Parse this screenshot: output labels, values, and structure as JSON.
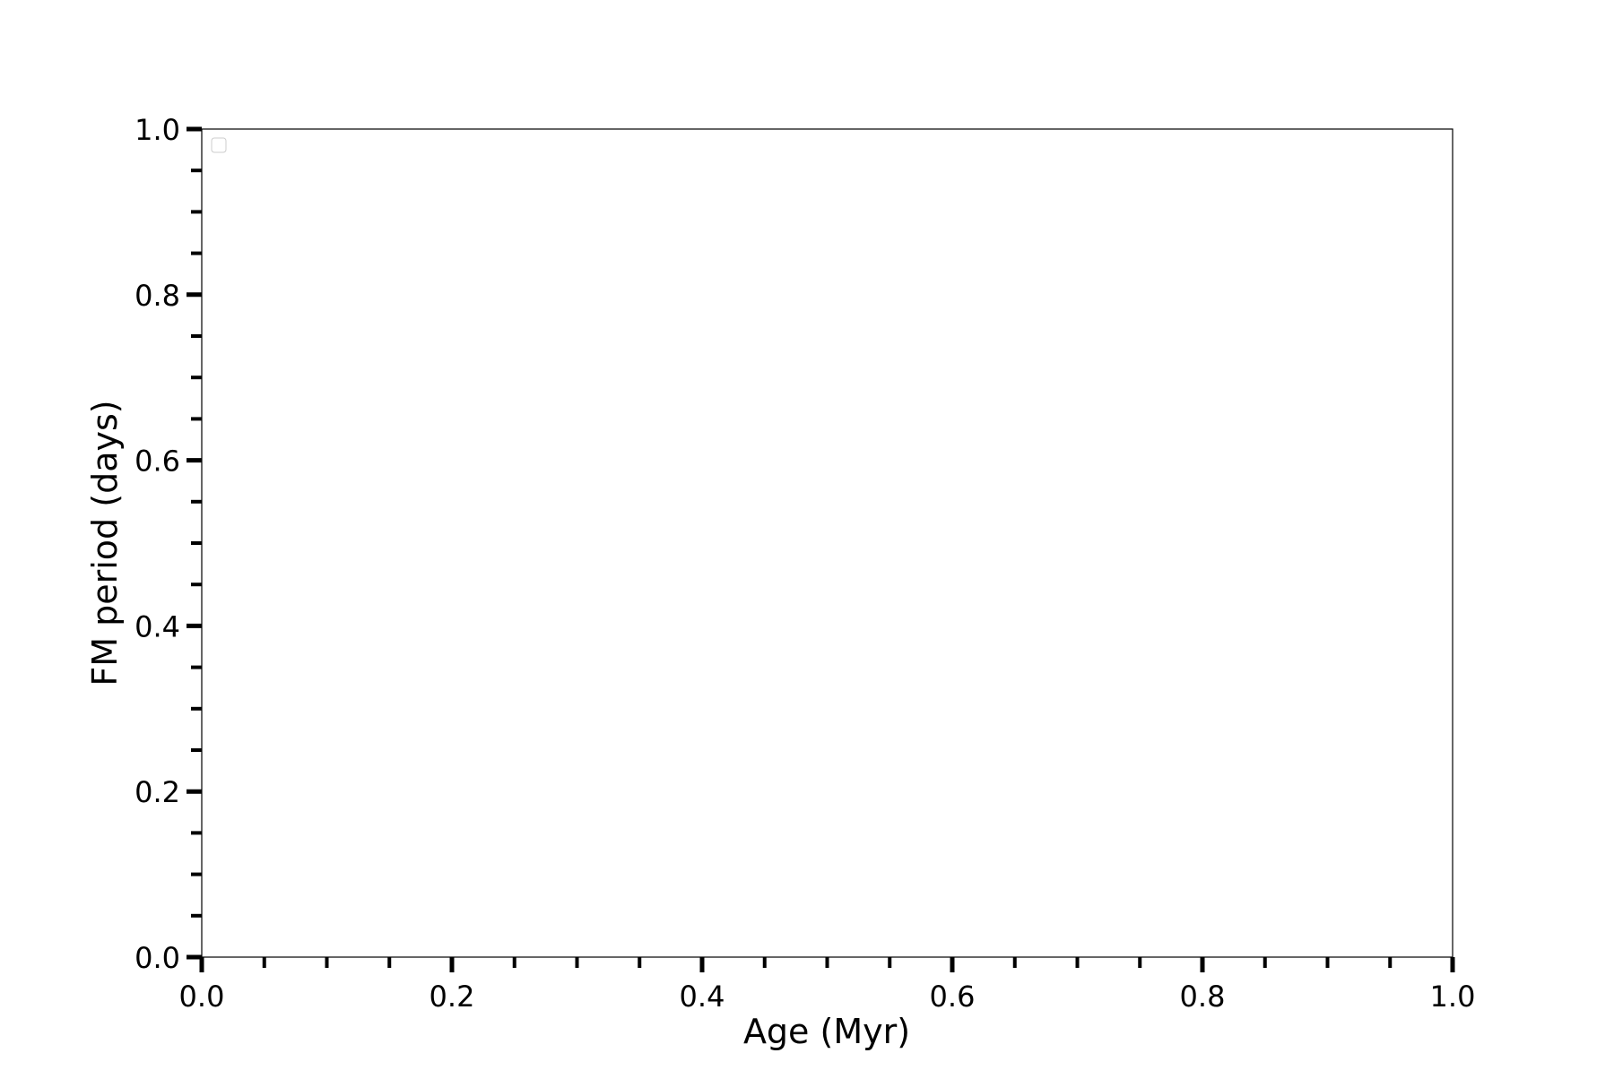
{
  "chart_data": {
    "type": "scatter",
    "title": "",
    "xlabel": "Age (Myr)",
    "ylabel": "FM period (days)",
    "xlim": [
      0.0,
      1.0
    ],
    "ylim": [
      0.0,
      1.0
    ],
    "xticks": [
      "0.0",
      "0.2",
      "0.4",
      "0.6",
      "0.8",
      "1.0"
    ],
    "yticks": [
      "0.0",
      "0.2",
      "0.4",
      "0.6",
      "0.8",
      "1.0"
    ],
    "series": [],
    "grid": false,
    "legend": "top-left, empty"
  }
}
